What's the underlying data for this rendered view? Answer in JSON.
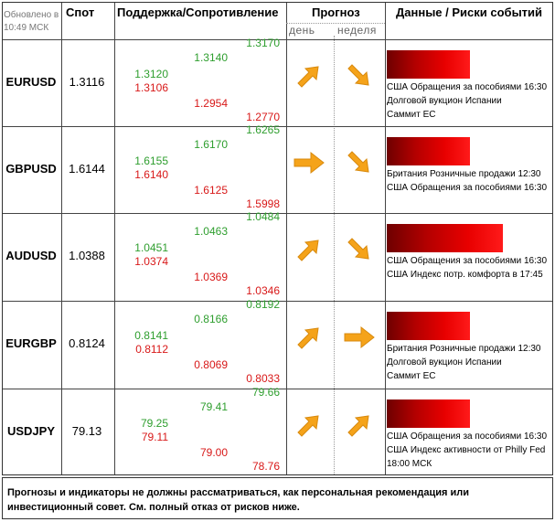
{
  "header": {
    "updated": "Обновлено в 10:49 МСК",
    "spot": "Спот",
    "levels": "Поддержка/Сопротивление",
    "forecast": "Прогноз",
    "day": "день",
    "week": "неделя",
    "events": "Данные / Риски событий"
  },
  "rows": [
    {
      "pair": "EURUSD",
      "spot": "1.3116",
      "c1": [
        "1.3120",
        "1.3106"
      ],
      "c2": [
        "1.3140",
        "1.2954"
      ],
      "c3": [
        "1.3170",
        "1.2770"
      ],
      "day_arrow": "arrow-up-right-icon",
      "week_arrow": "arrow-down-right-icon",
      "risk_level": 0.5,
      "events": [
        "США Обращения за пособиями 16:30",
        "Долговой вукцион Испании",
        "Саммит ЕС"
      ]
    },
    {
      "pair": "GBPUSD",
      "spot": "1.6144",
      "c1": [
        "1.6155",
        "1.6140"
      ],
      "c2": [
        "1.6170",
        "1.6125"
      ],
      "c3": [
        "1.6265",
        "1.5998"
      ],
      "day_arrow": "arrow-right-icon",
      "week_arrow": "arrow-down-right-icon",
      "risk_level": 0.5,
      "events": [
        "Британия Розничные продажи 12:30",
        "США Обращения за пособиями 16:30"
      ]
    },
    {
      "pair": "AUDUSD",
      "spot": "1.0388",
      "c1": [
        "1.0451",
        "1.0374"
      ],
      "c2": [
        "1.0463",
        "1.0369"
      ],
      "c3": [
        "1.0484",
        "1.0346"
      ],
      "day_arrow": "arrow-up-right-icon",
      "week_arrow": "arrow-down-right-icon",
      "risk_level": 0.7,
      "events": [
        "США Обращения за пособиями 16:30",
        "США Индекс потр. комфорта в 17:45"
      ]
    },
    {
      "pair": "EURGBP",
      "spot": "0.8124",
      "c1": [
        "0.8141",
        "0.8112"
      ],
      "c2": [
        "0.8166",
        "0.8069"
      ],
      "c3": [
        "0.8192",
        "0.8033"
      ],
      "day_arrow": "arrow-up-right-icon",
      "week_arrow": "arrow-right-icon",
      "risk_level": 0.5,
      "events": [
        "Британия Розничные продажи 12:30",
        "Долговой вукцион Испании",
        "Саммит ЕС"
      ]
    },
    {
      "pair": "USDJPY",
      "spot": "79.13",
      "c1": [
        "79.25",
        "79.11"
      ],
      "c2": [
        "79.41",
        "79.00"
      ],
      "c3": [
        "79.66",
        "78.76"
      ],
      "day_arrow": "arrow-up-right-icon",
      "week_arrow": "arrow-up-right-icon",
      "risk_level": 0.5,
      "events": [
        "США Обращения за пособиями 16:30",
        "США Индекс активности от Philly Fed",
        "18:00 МСК"
      ]
    }
  ],
  "disclaimer": "Прогнозы и индикаторы не должны рассматриваться, как персональная рекомендация или инвестиционный совет. См. полный отказ от рисков ниже.",
  "colors": {
    "support": "#2e9e2e",
    "resistance": "#d81818",
    "arrow": "#f5a31a",
    "risk": "#e00000"
  }
}
